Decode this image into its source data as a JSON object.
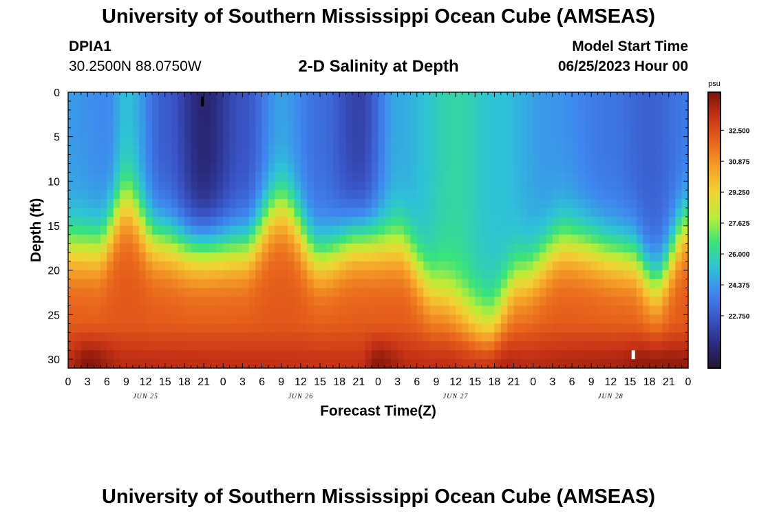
{
  "header": {
    "title": "University of Southern Mississippi Ocean Cube (AMSEAS)",
    "station_id": "DPIA1",
    "station_coords": "30.2500N  88.0750W",
    "subtitle": "2-D Salinity at Depth",
    "start_label": "Model Start Time",
    "start_value": "06/25/2023 Hour 00"
  },
  "footer": {
    "title": "University of Southern Mississippi Ocean Cube (AMSEAS)"
  },
  "chart_data": {
    "type": "heatmap",
    "title": "2-D Salinity at Depth",
    "xlabel": "Forecast Time(Z)",
    "ylabel": "Depth (ft)",
    "x_hours_range": [
      0,
      96
    ],
    "x_tick_step_hours": 3,
    "x_tick_labels": [
      "0",
      "3",
      "6",
      "9",
      "12",
      "15",
      "18",
      "21",
      "0",
      "3",
      "6",
      "9",
      "12",
      "15",
      "18",
      "21",
      "0",
      "3",
      "6",
      "9",
      "12",
      "15",
      "18",
      "21",
      "0",
      "3",
      "6",
      "9",
      "12",
      "15",
      "18",
      "21",
      "0"
    ],
    "date_labels": [
      {
        "hour": 12,
        "label": "JUN 25"
      },
      {
        "hour": 36,
        "label": "JUN 26"
      },
      {
        "hour": 60,
        "label": "JUN 27"
      },
      {
        "hour": 84,
        "label": "JUN 28"
      }
    ],
    "ylim": [
      0,
      31
    ],
    "y_ticks": [
      0,
      5,
      10,
      15,
      20,
      25,
      30
    ],
    "y_tick_labels": [
      "0",
      "5",
      "10",
      "15",
      "20",
      "25",
      "30"
    ],
    "colorbar": {
      "unit": "psu",
      "range": [
        20.0,
        34.5
      ],
      "ticks": [
        22.75,
        24.375,
        26.0,
        27.625,
        29.25,
        30.875,
        32.5
      ],
      "tick_labels": [
        "22.750",
        "24.375",
        "26.000",
        "27.625",
        "29.250",
        "30.875",
        "32.500"
      ],
      "colors": [
        "#241236",
        "#2b2d82",
        "#3a56c8",
        "#3f86f0",
        "#2ec3d7",
        "#3ae37a",
        "#b7ee38",
        "#f2d334",
        "#f5a028",
        "#e9651c",
        "#c93416",
        "#7a1208"
      ]
    },
    "halocline_depth_ft": [
      {
        "hour": 0,
        "value": 17.5
      },
      {
        "hour": 4.5,
        "value": 17.5
      },
      {
        "hour": 9,
        "value": 12.5
      },
      {
        "hour": 13.5,
        "value": 16.5
      },
      {
        "hour": 19.5,
        "value": 17.5
      },
      {
        "hour": 27,
        "value": 17.5
      },
      {
        "hour": 33,
        "value": 13.0
      },
      {
        "hour": 39,
        "value": 18.5
      },
      {
        "hour": 45,
        "value": 16.5
      },
      {
        "hour": 51,
        "value": 17.0
      },
      {
        "hour": 57,
        "value": 22.5
      },
      {
        "hour": 65,
        "value": 26.0
      },
      {
        "hour": 70,
        "value": 21.0
      },
      {
        "hour": 77,
        "value": 17.0
      },
      {
        "hour": 87,
        "value": 18.5
      },
      {
        "hour": 91,
        "value": 21.5
      },
      {
        "hour": 96,
        "value": 15.0
      }
    ],
    "surface_salinity_psu": [
      {
        "hour": 0,
        "value": 24.4
      },
      {
        "hour": 6,
        "value": 24.0
      },
      {
        "hour": 9,
        "value": 25.2
      },
      {
        "hour": 15,
        "value": 22.8
      },
      {
        "hour": 21,
        "value": 21.0
      },
      {
        "hour": 27,
        "value": 22.5
      },
      {
        "hour": 33,
        "value": 24.5
      },
      {
        "hour": 39,
        "value": 23.3
      },
      {
        "hour": 45,
        "value": 22.0
      },
      {
        "hour": 51,
        "value": 24.7
      },
      {
        "hour": 60,
        "value": 26.0
      },
      {
        "hour": 66,
        "value": 25.3
      },
      {
        "hour": 75,
        "value": 24.3
      },
      {
        "hour": 84,
        "value": 23.5
      },
      {
        "hour": 90,
        "value": 22.9
      },
      {
        "hour": 96,
        "value": 23.6
      }
    ],
    "bottom_salinity_psu": [
      {
        "hour": 0,
        "value": 33.5
      },
      {
        "hour": 3,
        "value": 34.3
      },
      {
        "hour": 9,
        "value": 33.4
      },
      {
        "hour": 45,
        "value": 33.2
      },
      {
        "hour": 48,
        "value": 34.2
      },
      {
        "hour": 53,
        "value": 33.4
      },
      {
        "hour": 61,
        "value": 33.5
      },
      {
        "hour": 66,
        "value": 33.9
      },
      {
        "hour": 71,
        "value": 33.5
      },
      {
        "hour": 84,
        "value": 33.7
      },
      {
        "hour": 90,
        "value": 34.2
      },
      {
        "hour": 96,
        "value": 34.0
      }
    ]
  }
}
